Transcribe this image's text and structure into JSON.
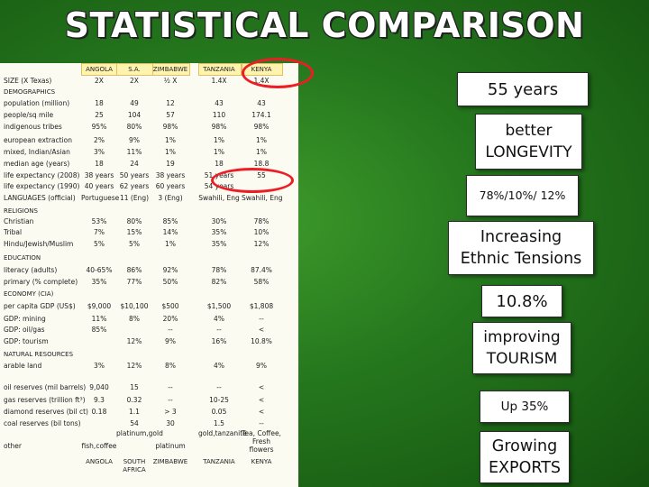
{
  "slide": {
    "title": "STATISTICAL COMPARISON",
    "colors": {
      "background": "#24761d",
      "title": "#ffffff",
      "highlight": "#ee1c25",
      "table_bg": "#fbfbf2"
    }
  },
  "table": {
    "columns": [
      "ANGOLA",
      "S.A.",
      "ZIMBABWE",
      "TANZANIA",
      "KENYA"
    ],
    "footer_columns": [
      "ANGOLA",
      "SOUTH AFRICA",
      "ZIMBABWE",
      "TANZANIA",
      "KENYA"
    ],
    "rows": [
      {
        "label": "SIZE (X Texas)",
        "values": [
          "2X",
          "2X",
          "½ X",
          "1.4X",
          "1.4X"
        ]
      },
      {
        "label": "DEMOGRAPHICS",
        "values": [
          "",
          "",
          "",
          "",
          ""
        ]
      },
      {
        "label": "population (million)",
        "values": [
          "18",
          "49",
          "12",
          "43",
          "43"
        ]
      },
      {
        "label": "people/sq mile",
        "values": [
          "25",
          "104",
          "57",
          "110",
          "174.1"
        ]
      },
      {
        "label": "indigenous tribes",
        "values": [
          "95%",
          "80%",
          "98%",
          "98%",
          "98%"
        ]
      },
      {
        "label": "european extraction",
        "values": [
          "2%",
          "9%",
          "1%",
          "1%",
          "1%"
        ]
      },
      {
        "label": "mixed, Indian/Asian",
        "values": [
          "3%",
          "11%",
          "1%",
          "1%",
          "1%"
        ]
      },
      {
        "label": "median age (years)",
        "values": [
          "18",
          "24",
          "19",
          "18",
          "18.8"
        ]
      },
      {
        "label": "life expectancy (2008)",
        "values": [
          "38 years",
          "50 years",
          "38 years",
          "51 years",
          "55"
        ]
      },
      {
        "label": "life expectancy (1990)",
        "values": [
          "40 years",
          "62 years",
          "60 years",
          "54 years",
          ""
        ]
      },
      {
        "label": "LANGUAGES (official)",
        "values": [
          "Portuguese",
          "11 (Eng)",
          "3 (Eng)",
          "Swahili, Eng",
          "Swahili, Eng"
        ]
      },
      {
        "label": "RELIGIONS",
        "values": [
          "",
          "",
          "",
          "",
          ""
        ]
      },
      {
        "label": "Christian",
        "values": [
          "53%",
          "80%",
          "85%",
          "30%",
          "78%"
        ]
      },
      {
        "label": "Tribal",
        "values": [
          "7%",
          "15%",
          "14%",
          "35%",
          "10%"
        ]
      },
      {
        "label": "Hindu/Jewish/Muslim",
        "values": [
          "5%",
          "5%",
          "1%",
          "35%",
          "12%"
        ]
      },
      {
        "label": "EDUCATION",
        "values": [
          "",
          "",
          "",
          "",
          ""
        ]
      },
      {
        "label": "literacy (adults)",
        "values": [
          "40-65%",
          "86%",
          "92%",
          "78%",
          "87.4%"
        ]
      },
      {
        "label": "primary (% complete)",
        "values": [
          "35%",
          "77%",
          "50%",
          "82%",
          "58%"
        ]
      },
      {
        "label": "ECONOMY (CIA)",
        "values": [
          "",
          "",
          "",
          "",
          ""
        ]
      },
      {
        "label": "per capita GDP (US$)",
        "values": [
          "$9,000",
          "$10,100",
          "$500",
          "$1,500",
          "$1,808"
        ]
      },
      {
        "label": "GDP: mining",
        "values": [
          "11%",
          "8%",
          "20%",
          "4%",
          "--"
        ]
      },
      {
        "label": "GDP: oil/gas",
        "values": [
          "85%",
          "",
          "--",
          "--",
          "<"
        ]
      },
      {
        "label": "GDP: tourism",
        "values": [
          "",
          "12%",
          "9%",
          "16%",
          "10.8%"
        ]
      },
      {
        "label": "NATURAL RESOURCES",
        "values": [
          "",
          "",
          "",
          "",
          ""
        ]
      },
      {
        "label": "arable land",
        "values": [
          "3%",
          "12%",
          "8%",
          "4%",
          "9%"
        ]
      },
      {
        "label": "oil reserves (mil barrels)",
        "values": [
          "9,040",
          "15",
          "--",
          "--",
          "<"
        ]
      },
      {
        "label": "gas reserves (trillion ft³)",
        "values": [
          "9.3",
          "0.32",
          "--",
          "10-25",
          "<"
        ]
      },
      {
        "label": "diamond reserves (bil ct)",
        "values": [
          "0.18",
          "1.1",
          "> 3",
          "0.05",
          "<"
        ]
      },
      {
        "label": "coal reserves (bil tons)",
        "values": [
          "",
          "54",
          "30",
          "1.5",
          "--"
        ]
      },
      {
        "label": "other",
        "values": [
          "fish,coffee",
          "platinum,gold",
          "platinum",
          "gold,tanzanite",
          "Tea, Coffee, Fresh flowers"
        ]
      }
    ]
  },
  "callouts": {
    "years": "55 years",
    "longevity": "better LONGEVITY",
    "religion": "78%/10%/ 12%",
    "ethnic": "Increasing Ethnic Tensions",
    "gdp": "10.8%",
    "tourism": "improving TOURISM",
    "up": "Up 35%",
    "exports": "Growing EXPORTS"
  }
}
